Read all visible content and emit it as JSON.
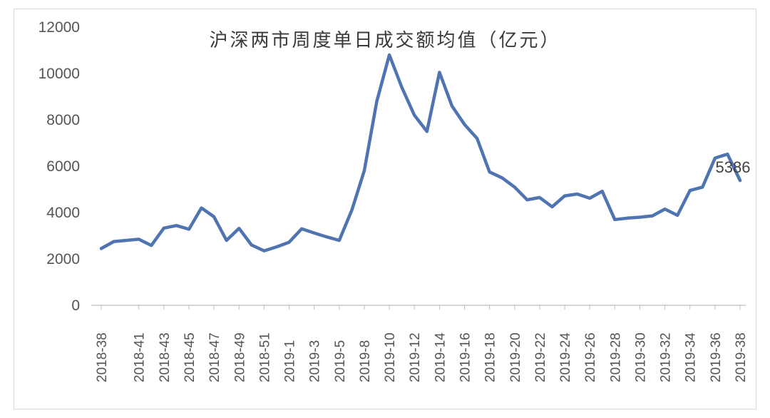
{
  "chart_data": {
    "type": "line",
    "title": "沪深两市周度单日成交额均值（亿元）",
    "xlabel": "",
    "ylabel": "",
    "ylim": [
      0,
      12000
    ],
    "yticks": [
      "0",
      "2000",
      "4000",
      "6000",
      "8000",
      "10000",
      "12000"
    ],
    "x": [
      "2018-38",
      "2018-39",
      "2018-40",
      "2018-41",
      "2018-42",
      "2018-43",
      "2018-44",
      "2018-45",
      "2018-46",
      "2018-47",
      "2018-48",
      "2018-49",
      "2018-50",
      "2018-51",
      "2018-52",
      "2019-1",
      "2019-2",
      "2019-3",
      "2019-4",
      "2019-5",
      "2019-6",
      "2019-8",
      "2019-9",
      "2019-10",
      "2019-11",
      "2019-12",
      "2019-13",
      "2019-14",
      "2019-15",
      "2019-16",
      "2019-17",
      "2019-18",
      "2019-19",
      "2019-20",
      "2019-21",
      "2019-22",
      "2019-23",
      "2019-24",
      "2019-25",
      "2019-26",
      "2019-27",
      "2019-28",
      "2019-29",
      "2019-30",
      "2019-31",
      "2019-32",
      "2019-33",
      "2019-34",
      "2019-35",
      "2019-36",
      "2019-37",
      "2019-38"
    ],
    "xtick_labels": [
      "2018-38",
      "2018-41",
      "2018-43",
      "2018-45",
      "2018-47",
      "2018-49",
      "2018-51",
      "2019-1",
      "2019-3",
      "2019-5",
      "2019-8",
      "2019-10",
      "2019-12",
      "2019-14",
      "2019-16",
      "2019-18",
      "2019-20",
      "2019-22",
      "2019-24",
      "2019-26",
      "2019-28",
      "2019-30",
      "2019-32",
      "2019-34",
      "2019-36",
      "2019-38"
    ],
    "series": [
      {
        "color": "#4f74b0",
        "values": [
          2450,
          2750,
          2800,
          2850,
          2580,
          3330,
          3440,
          3280,
          4200,
          3820,
          2800,
          3320,
          2600,
          2350,
          2520,
          2720,
          3300,
          3120,
          2950,
          2800,
          4100,
          5800,
          8800,
          10800,
          9400,
          8200,
          7500,
          10050,
          8600,
          7800,
          7200,
          5750,
          5500,
          5100,
          4550,
          4650,
          4250,
          4720,
          4800,
          4620,
          4920,
          3700,
          3760,
          3800,
          3860,
          4150,
          3880,
          4950,
          5100,
          6350,
          6520,
          5386
        ]
      }
    ],
    "annotations": [
      {
        "text": "5386",
        "x": "2019-38",
        "y": 5386
      }
    ],
    "grid": false,
    "legend": "none"
  }
}
